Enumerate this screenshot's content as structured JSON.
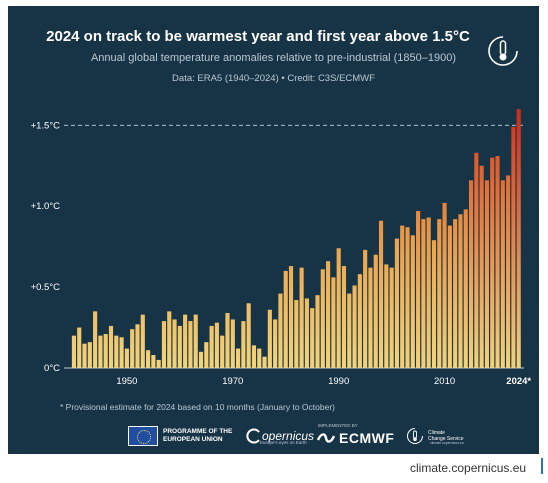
{
  "header": {
    "title": "2024 on track to be warmest year and first year above 1.5°C",
    "subtitle": "Annual global temperature anomalies relative to pre-industrial (1850–1900)",
    "source": "Data: ERA5 (1940–2024) • Credit: C3S/ECMWF"
  },
  "footnote": "* Provisional estimate for 2024 based on 10 months (January to October)",
  "logos": {
    "eu": "PROGRAMME OF THE\nEUROPEAN UNION",
    "copernicus": "opernicus",
    "copernicus_sub": "Europe's eyes on Earth",
    "implemented_by": "IMPLEMENTED BY",
    "ecmwf": "ECMWF",
    "c3s": "Climate\nChange Service",
    "c3s_sub": "climate.copernicus.eu"
  },
  "credit": "climate.copernicus.eu",
  "colors": {
    "background": "#173446",
    "bar_low": "#f2d57c",
    "bar_mid": "#eba248",
    "bar_high": "#dc4a25",
    "bar_top": "#c92a1c"
  },
  "chart_data": {
    "type": "bar",
    "title": "2024 on track to be warmest year and first year above 1.5°C",
    "subtitle": "Annual global temperature anomalies relative to pre-industrial (1850–1900)",
    "x": [
      1940,
      1941,
      1942,
      1943,
      1944,
      1945,
      1946,
      1947,
      1948,
      1949,
      1950,
      1951,
      1952,
      1953,
      1954,
      1955,
      1956,
      1957,
      1958,
      1959,
      1960,
      1961,
      1962,
      1963,
      1964,
      1965,
      1966,
      1967,
      1968,
      1969,
      1970,
      1971,
      1972,
      1973,
      1974,
      1975,
      1976,
      1977,
      1978,
      1979,
      1980,
      1981,
      1982,
      1983,
      1984,
      1985,
      1986,
      1987,
      1988,
      1989,
      1990,
      1991,
      1992,
      1993,
      1994,
      1995,
      1996,
      1997,
      1998,
      1999,
      2000,
      2001,
      2002,
      2003,
      2004,
      2005,
      2006,
      2007,
      2008,
      2009,
      2010,
      2011,
      2012,
      2013,
      2014,
      2015,
      2016,
      2017,
      2018,
      2019,
      2020,
      2021,
      2022,
      2023,
      2024
    ],
    "values": [
      0.2,
      0.25,
      0.15,
      0.16,
      0.35,
      0.2,
      0.21,
      0.26,
      0.2,
      0.19,
      0.12,
      0.24,
      0.27,
      0.33,
      0.11,
      0.08,
      0.05,
      0.29,
      0.35,
      0.3,
      0.26,
      0.33,
      0.29,
      0.33,
      0.1,
      0.16,
      0.26,
      0.28,
      0.2,
      0.34,
      0.3,
      0.12,
      0.29,
      0.4,
      0.14,
      0.12,
      0.07,
      0.36,
      0.3,
      0.46,
      0.6,
      0.63,
      0.42,
      0.62,
      0.43,
      0.37,
      0.45,
      0.61,
      0.66,
      0.56,
      0.74,
      0.63,
      0.46,
      0.51,
      0.58,
      0.73,
      0.62,
      0.7,
      0.91,
      0.64,
      0.62,
      0.8,
      0.88,
      0.87,
      0.82,
      0.97,
      0.92,
      0.93,
      0.79,
      0.92,
      1.02,
      0.88,
      0.92,
      0.95,
      0.98,
      1.16,
      1.33,
      1.25,
      1.16,
      1.3,
      1.31,
      1.16,
      1.19,
      1.49,
      1.6
    ],
    "highlight": "2024*",
    "xticks": [
      "1950",
      "1970",
      "1990",
      "2010",
      "2024*"
    ],
    "xtick_values": [
      1950,
      1970,
      1990,
      2010,
      2024
    ],
    "yticks": [
      "0°C",
      "+0.5°C",
      "+1.0°C",
      "+1.5°C"
    ],
    "ytick_values": [
      0,
      0.5,
      1.0,
      1.5
    ],
    "ylim": [
      0,
      1.65
    ],
    "xlim": [
      1938.5,
      2025
    ],
    "reference_line": 1.5,
    "grid": false,
    "legend": "none"
  }
}
